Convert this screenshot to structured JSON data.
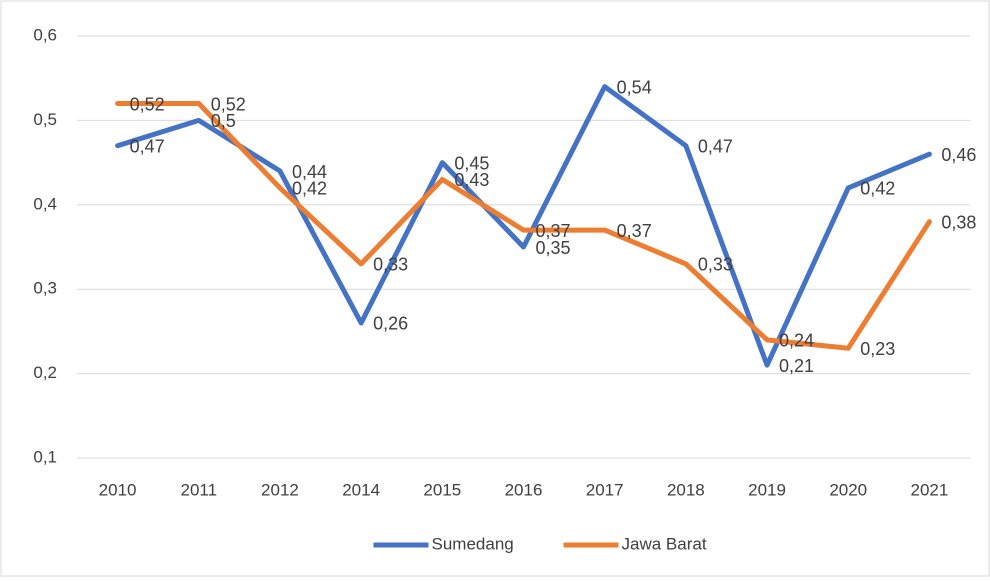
{
  "chart_data": {
    "type": "line",
    "categories": [
      "2010",
      "2011",
      "2012",
      "2014",
      "2015",
      "2016",
      "2017",
      "2018",
      "2019",
      "2020",
      "2021"
    ],
    "series": [
      {
        "name": "Sumedang",
        "color": "#4472c4",
        "values": [
          0.47,
          0.5,
          0.44,
          0.26,
          0.45,
          0.35,
          0.54,
          0.47,
          0.21,
          0.42,
          0.46
        ],
        "value_labels": [
          "0,47",
          "0,5",
          "0,44",
          "0,26",
          "0,45",
          "0,35",
          "0,54",
          "0,47",
          "0,21",
          "0,42",
          "0,46"
        ]
      },
      {
        "name": "Jawa Barat",
        "color": "#ed7d31",
        "values": [
          0.52,
          0.52,
          0.42,
          0.33,
          0.43,
          0.37,
          0.37,
          0.33,
          0.24,
          0.23,
          0.38
        ],
        "value_labels": [
          "0,52",
          "0,52",
          "0,42",
          "0,33",
          "0,43",
          "0,37",
          "0,37",
          "0,33",
          "0,24",
          "0,23",
          "0,38"
        ]
      }
    ],
    "ylim": [
      0.1,
      0.6
    ],
    "yticks": [
      {
        "value": 0.1,
        "label": "0,1"
      },
      {
        "value": 0.2,
        "label": "0,2"
      },
      {
        "value": 0.3,
        "label": "0,3"
      },
      {
        "value": 0.4,
        "label": "0,4"
      },
      {
        "value": 0.5,
        "label": "0,5"
      },
      {
        "value": 0.6,
        "label": "0,6"
      }
    ],
    "grid": true,
    "legend": "bottom"
  }
}
